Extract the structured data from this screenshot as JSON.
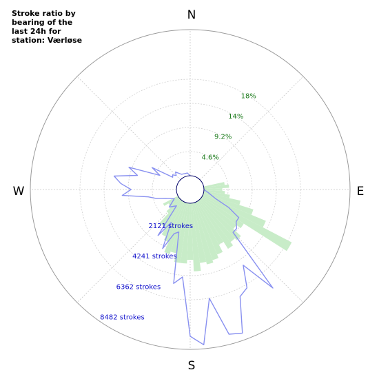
{
  "chart_data": {
    "type": "polar",
    "title": "Stroke ratio by bearing of the last 24h for station: Værløse",
    "directions": [
      "N",
      "E",
      "S",
      "W"
    ],
    "ratio_ring_labels": [
      "4.6%",
      "9.2%",
      "14%",
      "18%"
    ],
    "ratio_ring_values": [
      4.6,
      9.2,
      14,
      18
    ],
    "stroke_ring_labels": [
      "2121 strokes",
      "4241 strokes",
      "6362 strokes",
      "8482 strokes"
    ],
    "stroke_ring_values": [
      2121,
      4241,
      6362,
      8482
    ],
    "ratio_bearing_deg": [
      80,
      85,
      90,
      95,
      100,
      105,
      110,
      115,
      120,
      125,
      130,
      135,
      140,
      145,
      150,
      155,
      160,
      165,
      170,
      175,
      180,
      185,
      190,
      195,
      200,
      205,
      210,
      215,
      220,
      225,
      230,
      235,
      240
    ],
    "ratio_percent": [
      4.0,
      4.8,
      3.5,
      4.0,
      5.0,
      7.2,
      10.0,
      13.0,
      19.2,
      9.5,
      8.5,
      10.5,
      10.0,
      10.8,
      9.2,
      10.8,
      11.5,
      12.0,
      11.5,
      13.0,
      10.8,
      11.5,
      11.5,
      9.8,
      10.3,
      8.2,
      7.5,
      6.0,
      6.0,
      3.5,
      2.5,
      2.3,
      3.2
    ],
    "strokes_bearing_deg": [
      90,
      100,
      110,
      115,
      120,
      125,
      130,
      135,
      140,
      145,
      150,
      155,
      160,
      165,
      170,
      175,
      180,
      185,
      190,
      195,
      200,
      205,
      210,
      215,
      220,
      230,
      240,
      250,
      255,
      260,
      265,
      270,
      275,
      280,
      285,
      290,
      295,
      300,
      305,
      310,
      315,
      320,
      330,
      340,
      350,
      0
    ],
    "strokes": [
      0,
      300,
      900,
      1900,
      2800,
      2800,
      3100,
      3100,
      7600,
      5200,
      6600,
      6900,
      9200,
      9000,
      6400,
      9400,
      8800,
      4900,
      5400,
      2000,
      2200,
      3400,
      1600,
      2800,
      500,
      900,
      300,
      800,
      1400,
      1900,
      3600,
      3000,
      3700,
      4200,
      2700,
      3400,
      1300,
      2000,
      500,
      600,
      400,
      600,
      250,
      200,
      200,
      0
    ],
    "ratio_color": "#c8ecc8",
    "strokes_color": "#8890f0",
    "ratio_label_color": "#1a7a1a",
    "stroke_label_color": "#1010cc",
    "grid": true
  }
}
